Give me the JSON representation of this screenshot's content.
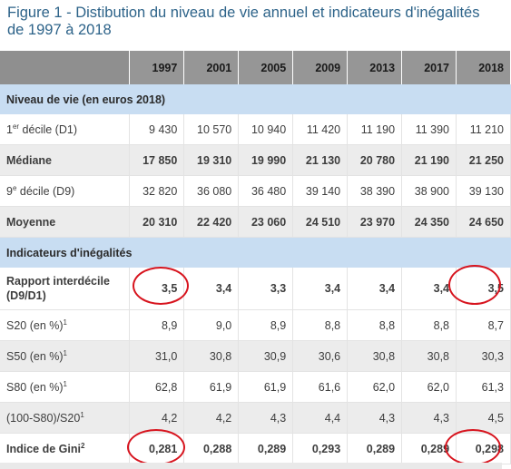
{
  "title": "Figure 1 - Distibution du niveau de vie annuel et indicateurs d'inégalités de 1997 à 2018",
  "table": {
    "years": [
      "1997",
      "2001",
      "2005",
      "2009",
      "2013",
      "2017",
      "2018"
    ],
    "section1": "Niveau de vie (en euros 2018)",
    "d1": {
      "pre": "1",
      "sup": "er",
      "post": " décile (D1)",
      "values": [
        "9 430",
        "10 570",
        "10 940",
        "11 420",
        "11 190",
        "11 390",
        "11 210"
      ]
    },
    "mediane": {
      "label": "Médiane",
      "values": [
        "17 850",
        "19 310",
        "19 990",
        "21 130",
        "20 780",
        "21 190",
        "21 250"
      ]
    },
    "d9": {
      "pre": "9",
      "sup": "e",
      "post": " décile (D9)",
      "values": [
        "32 820",
        "36 080",
        "36 480",
        "39 140",
        "38 390",
        "38 900",
        "39 130"
      ]
    },
    "moyenne": {
      "label": "Moyenne",
      "values": [
        "20 310",
        "22 420",
        "23 060",
        "24 510",
        "23 970",
        "24 350",
        "24 650"
      ]
    },
    "section2": "Indicateurs d'inégalités",
    "rapport": {
      "label": "Rapport interdécile (D9/D1)",
      "values": [
        "3,5",
        "3,4",
        "3,3",
        "3,4",
        "3,4",
        "3,4",
        "3,5"
      ]
    },
    "s20": {
      "label": "S20 (en %)",
      "sup": "1",
      "values": [
        "8,9",
        "9,0",
        "8,9",
        "8,8",
        "8,8",
        "8,8",
        "8,7"
      ]
    },
    "s50": {
      "label": "S50 (en %)",
      "sup": "1",
      "values": [
        "31,0",
        "30,8",
        "30,9",
        "30,6",
        "30,8",
        "30,8",
        "30,3"
      ]
    },
    "s80": {
      "label": "S80 (en %)",
      "sup": "1",
      "values": [
        "62,8",
        "61,9",
        "61,9",
        "61,6",
        "62,0",
        "62,0",
        "61,3"
      ]
    },
    "ratio": {
      "label": "(100-S80)/S20",
      "sup": "1",
      "values": [
        "4,2",
        "4,2",
        "4,3",
        "4,4",
        "4,3",
        "4,3",
        "4,5"
      ]
    },
    "gini": {
      "label": "Indice de Gini",
      "sup": "2",
      "values": [
        "0,281",
        "0,288",
        "0,289",
        "0,293",
        "0,289",
        "0,289",
        "0,298"
      ]
    }
  },
  "colors": {
    "title": "#2d6389",
    "header_bg": "#969696",
    "section_bg": "#c8ddf2",
    "alt_row_bg": "#ececec",
    "circle": "#d7141e"
  }
}
